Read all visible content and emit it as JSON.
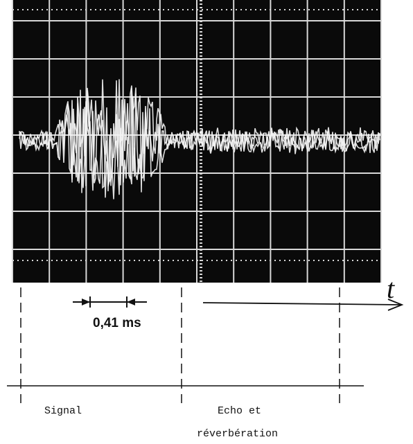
{
  "axis_label": "t",
  "scale_label": "0,41 ms",
  "regions": [
    {
      "lines": [
        "Signal"
      ]
    },
    {
      "lines": [
        "Echo et",
        "réverbération"
      ]
    }
  ]
}
